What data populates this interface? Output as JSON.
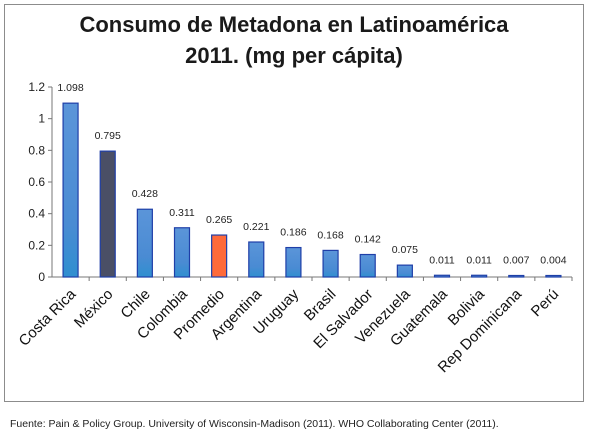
{
  "title_line1": "Consumo de Metadona en Latinoamérica",
  "title_line2": "2011. (mg per cápita)",
  "source": "Fuente: Pain & Policy Group. University of Wisconsin-Madison (2011). WHO Collaborating Center (2011).",
  "colors": {
    "default_bar": "#4a8bd3",
    "default_bar_edge": "#1f3fa8",
    "mexico_bar": "#4a4f66",
    "promedio_bar": "#ff6a3a",
    "axis": "#777777"
  },
  "chart_data": {
    "type": "bar",
    "categories": [
      "Costa Rica",
      "México",
      "Chile",
      "Colombia",
      "Promedio",
      "Argentina",
      "Uruguay",
      "Brasil",
      "El Salvador",
      "Venezuela",
      "Guatemala",
      "Bolivia",
      "Rep Dominicana",
      "Perú"
    ],
    "values": [
      1.098,
      0.795,
      0.428,
      0.311,
      0.265,
      0.221,
      0.186,
      0.168,
      0.142,
      0.075,
      0.011,
      0.011,
      0.007,
      0.004
    ],
    "value_labels": [
      "1.098",
      "0.795",
      "0.428",
      "0.311",
      "0.265",
      "0.221",
      "0.186",
      "0.168",
      "0.142",
      "0.075",
      "0.011",
      "0.011",
      "0.007",
      "0.004"
    ],
    "yticks": [
      "0",
      "0.2",
      "0.4",
      "0.6",
      "0.8",
      "1",
      "1.2"
    ],
    "ylim": [
      0,
      1.2
    ],
    "grid": false,
    "legend": "none",
    "highlight": {
      "México": "mexico_bar",
      "Promedio": "promedio_bar"
    }
  }
}
